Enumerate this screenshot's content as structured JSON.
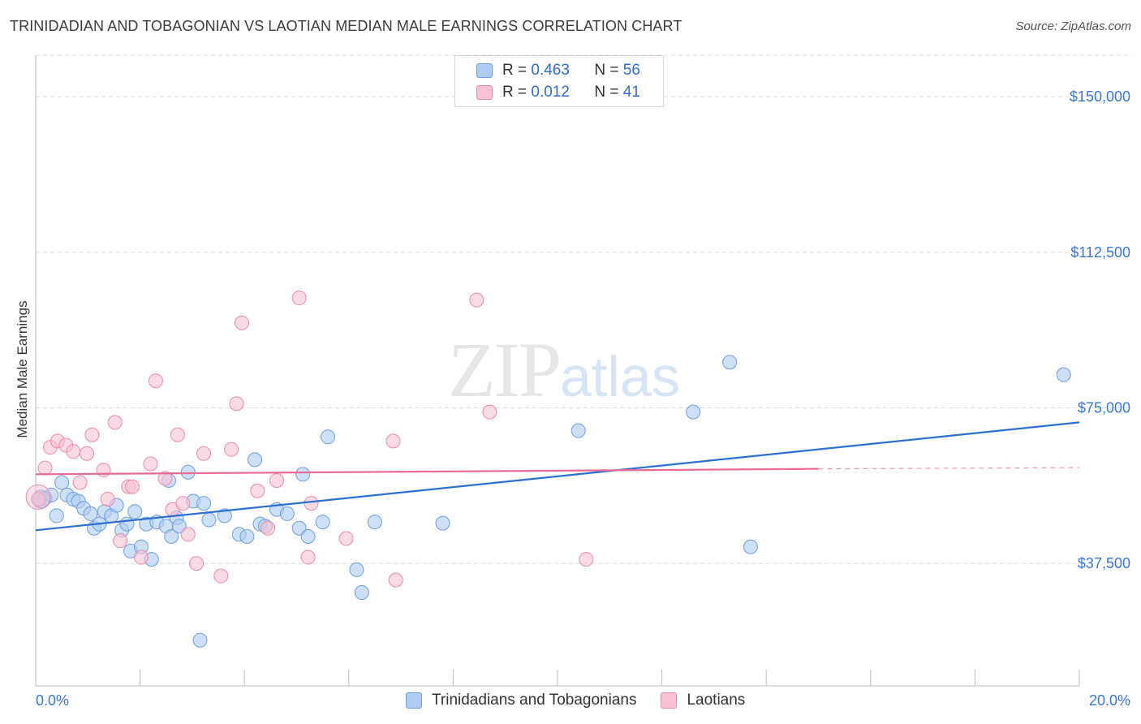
{
  "title": "TRINIDADIAN AND TOBAGONIAN VS LAOTIAN MEDIAN MALE EARNINGS CORRELATION CHART",
  "source": "Source: ZipAtlas.com",
  "watermark": {
    "zip": "ZIP",
    "atlas": "atlas"
  },
  "legend": {
    "rows": [
      {
        "r_label": "R =",
        "r_value": "0.463",
        "n_label": "N =",
        "n_value": "56"
      },
      {
        "r_label": "R =",
        "r_value": "0.012",
        "n_label": "N =",
        "n_value": "41"
      }
    ]
  },
  "colors": {
    "blue_fill": "#aecbf0",
    "blue_stroke": "#6d9fe0",
    "blue_line": "#2b6fd1",
    "pink_fill": "#f7c1d2",
    "pink_stroke": "#ec8aab",
    "pink_line": "#e66b95",
    "grid": "#dcdcdc",
    "axis_label": "#3a78d0"
  },
  "chart_data": {
    "type": "scatter",
    "title": "TRINIDADIAN AND TOBAGONIAN VS LAOTIAN MEDIAN MALE EARNINGS CORRELATION CHART",
    "xlabel": "",
    "ylabel": "Median Male Earnings",
    "xlim": [
      0,
      20
    ],
    "ylim": [
      8000,
      160000
    ],
    "x_tick_labels": [
      "0.0%",
      "20.0%"
    ],
    "y_ticks": [
      37500,
      75000,
      112500,
      150000
    ],
    "y_tick_labels": [
      "$37,500",
      "$75,000",
      "$112,500",
      "$150,000"
    ],
    "series": [
      {
        "name": "Trinidadians and Tobagonians",
        "color": "#6d9fe0",
        "trend": {
          "x0": 0,
          "y0": 45500,
          "x1": 20,
          "y1": 71500,
          "dash_from": null
        },
        "points": [
          [
            0.08,
            53000
          ],
          [
            0.12,
            52500
          ],
          [
            0.18,
            53200
          ],
          [
            0.3,
            54000
          ],
          [
            0.4,
            49000
          ],
          [
            0.5,
            57000
          ],
          [
            0.6,
            54000
          ],
          [
            0.72,
            53000
          ],
          [
            0.82,
            52500
          ],
          [
            0.92,
            50800
          ],
          [
            1.05,
            49500
          ],
          [
            1.12,
            46000
          ],
          [
            1.22,
            47000
          ],
          [
            1.32,
            50000
          ],
          [
            1.45,
            49000
          ],
          [
            1.55,
            51500
          ],
          [
            1.65,
            45500
          ],
          [
            1.75,
            47000
          ],
          [
            1.82,
            40500
          ],
          [
            1.9,
            50000
          ],
          [
            2.02,
            41500
          ],
          [
            2.12,
            47000
          ],
          [
            2.22,
            38500
          ],
          [
            2.32,
            47500
          ],
          [
            2.5,
            46500
          ],
          [
            2.6,
            44000
          ],
          [
            2.7,
            48500
          ],
          [
            2.75,
            46500
          ],
          [
            2.92,
            59500
          ],
          [
            3.02,
            52500
          ],
          [
            3.22,
            52000
          ],
          [
            3.32,
            48000
          ],
          [
            3.62,
            49000
          ],
          [
            3.9,
            44500
          ],
          [
            4.05,
            44000
          ],
          [
            4.2,
            62500
          ],
          [
            4.3,
            47000
          ],
          [
            4.4,
            46500
          ],
          [
            4.62,
            50500
          ],
          [
            4.82,
            49500
          ],
          [
            5.05,
            46000
          ],
          [
            5.12,
            59000
          ],
          [
            5.22,
            44000
          ],
          [
            5.5,
            47500
          ],
          [
            5.6,
            68000
          ],
          [
            6.15,
            36000
          ],
          [
            6.25,
            30500
          ],
          [
            6.5,
            47500
          ],
          [
            3.15,
            19000
          ],
          [
            7.8,
            47200
          ],
          [
            10.4,
            69500
          ],
          [
            12.6,
            74000
          ],
          [
            13.3,
            86000
          ],
          [
            13.7,
            41500
          ],
          [
            19.7,
            83000
          ],
          [
            2.55,
            57500
          ]
        ]
      },
      {
        "name": "Laotians",
        "color": "#ec8aab",
        "trend": {
          "x0": 0,
          "y0": 59000,
          "x1": 15,
          "y1": 60300,
          "dash_from": 15,
          "dash_to": 20,
          "dash_y1": 60600
        },
        "points": [
          [
            0.05,
            53000
          ],
          [
            0.18,
            60500
          ],
          [
            0.28,
            65500
          ],
          [
            0.42,
            67000
          ],
          [
            0.58,
            66000
          ],
          [
            0.72,
            64500
          ],
          [
            0.85,
            57000
          ],
          [
            0.98,
            64000
          ],
          [
            1.08,
            68500
          ],
          [
            1.3,
            60000
          ],
          [
            1.38,
            53000
          ],
          [
            1.52,
            71500
          ],
          [
            1.62,
            43000
          ],
          [
            1.78,
            56000
          ],
          [
            1.85,
            56000
          ],
          [
            2.02,
            39000
          ],
          [
            2.2,
            61500
          ],
          [
            2.3,
            81500
          ],
          [
            2.48,
            58000
          ],
          [
            2.62,
            50500
          ],
          [
            2.72,
            68500
          ],
          [
            2.82,
            52000
          ],
          [
            2.92,
            44500
          ],
          [
            3.08,
            37500
          ],
          [
            3.22,
            64000
          ],
          [
            3.55,
            34500
          ],
          [
            3.75,
            65000
          ],
          [
            3.85,
            76000
          ],
          [
            3.95,
            95500
          ],
          [
            4.25,
            55000
          ],
          [
            4.45,
            46000
          ],
          [
            4.62,
            57500
          ],
          [
            5.05,
            101500
          ],
          [
            5.22,
            39000
          ],
          [
            5.28,
            52000
          ],
          [
            5.95,
            43500
          ],
          [
            6.85,
            67000
          ],
          [
            6.9,
            33500
          ],
          [
            8.45,
            101000
          ],
          [
            8.7,
            74000
          ],
          [
            10.55,
            38500
          ]
        ]
      }
    ]
  },
  "bottom_legend": {
    "items": [
      {
        "label": "Trinidadians and Tobagonians"
      },
      {
        "label": "Laotians"
      }
    ]
  }
}
